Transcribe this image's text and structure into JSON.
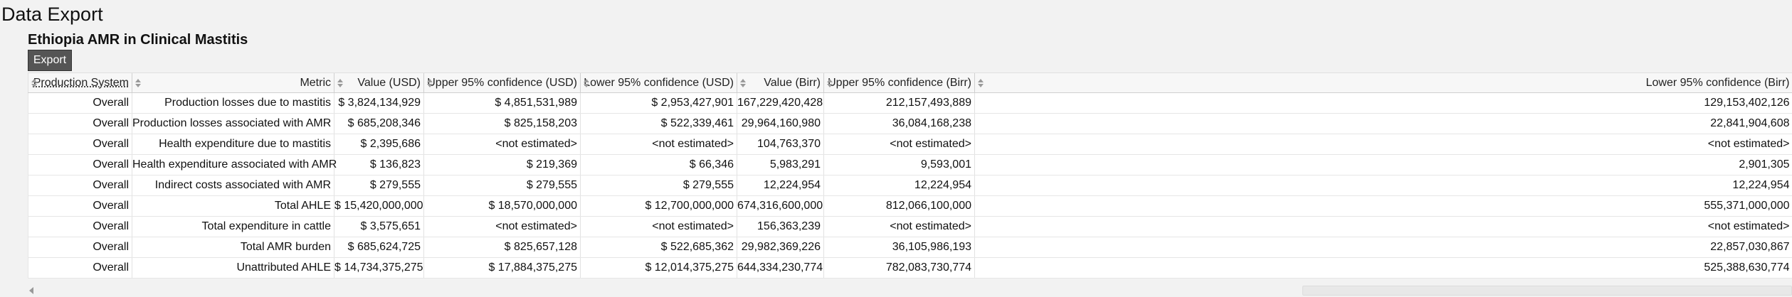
{
  "page": {
    "title": "Data Export",
    "subtitle": "Ethiopia AMR in Clinical Mastitis",
    "export_label": "Export"
  },
  "table": {
    "columns": [
      "Production System",
      "Metric",
      "Value (USD)",
      "Upper 95% confidence (USD)",
      "Lower 95% confidence (USD)",
      "Value (Birr)",
      "Upper 95% confidence (Birr)",
      "Lower 95% confidence (Birr)"
    ],
    "rows": [
      [
        "Overall",
        "Production losses due to mastitis",
        "$ 3,824,134,929",
        "$ 4,851,531,989",
        "$ 2,953,427,901",
        "167,229,420,428",
        "212,157,493,889",
        "129,153,402,126"
      ],
      [
        "Overall",
        "Production losses associated with AMR",
        "$ 685,208,346",
        "$ 825,158,203",
        "$ 522,339,461",
        "29,964,160,980",
        "36,084,168,238",
        "22,841,904,608"
      ],
      [
        "Overall",
        "Health expenditure due to mastitis",
        "$ 2,395,686",
        "<not estimated>",
        "<not estimated>",
        "104,763,370",
        "<not estimated>",
        "<not estimated>"
      ],
      [
        "Overall",
        "Health expenditure associated with AMR",
        "$ 136,823",
        "$ 219,369",
        "$ 66,346",
        "5,983,291",
        "9,593,001",
        "2,901,305"
      ],
      [
        "Overall",
        "Indirect costs associated with AMR",
        "$ 279,555",
        "$ 279,555",
        "$ 279,555",
        "12,224,954",
        "12,224,954",
        "12,224,954"
      ],
      [
        "Overall",
        "Total AHLE",
        "$ 15,420,000,000",
        "$ 18,570,000,000",
        "$ 12,700,000,000",
        "674,316,600,000",
        "812,066,100,000",
        "555,371,000,000"
      ],
      [
        "Overall",
        "Total expenditure in cattle",
        "$ 3,575,651",
        "<not estimated>",
        "<not estimated>",
        "156,363,239",
        "<not estimated>",
        "<not estimated>"
      ],
      [
        "Overall",
        "Total AMR burden",
        "$ 685,624,725",
        "$ 825,657,128",
        "$ 522,685,362",
        "29,982,369,226",
        "36,105,986,193",
        "22,857,030,867"
      ],
      [
        "Overall",
        "Unattributed AHLE",
        "$ 14,734,375,275",
        "$ 17,884,375,275",
        "$ 12,014,375,275",
        "644,334,230,774",
        "782,083,730,774",
        "525,388,630,774"
      ]
    ]
  }
}
